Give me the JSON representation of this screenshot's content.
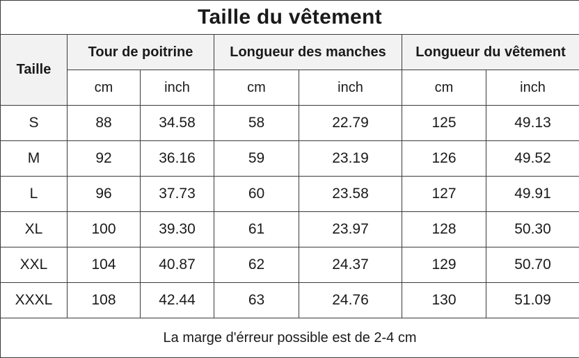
{
  "title": "Taille du vêtement",
  "headers": {
    "size": "Taille",
    "chest": "Tour de poitrine",
    "sleeve": "Longueur des manches",
    "length": "Longueur du vêtement"
  },
  "units": [
    "cm",
    "inch",
    "cm",
    "inch",
    "cm",
    "inch"
  ],
  "rows": [
    [
      "S",
      "88",
      "34.58",
      "58",
      "22.79",
      "125",
      "49.13"
    ],
    [
      "M",
      "92",
      "36.16",
      "59",
      "23.19",
      "126",
      "49.52"
    ],
    [
      "L",
      "96",
      "37.73",
      "60",
      "23.58",
      "127",
      "49.91"
    ],
    [
      "XL",
      "100",
      "39.30",
      "61",
      "23.97",
      "128",
      "50.30"
    ],
    [
      "XXL",
      "104",
      "40.87",
      "62",
      "24.37",
      "129",
      "50.70"
    ],
    [
      "XXXL",
      "108",
      "42.44",
      "63",
      "24.76",
      "130",
      "51.09"
    ]
  ],
  "note": "La marge d'érreur possible est de 2-4 cm"
}
